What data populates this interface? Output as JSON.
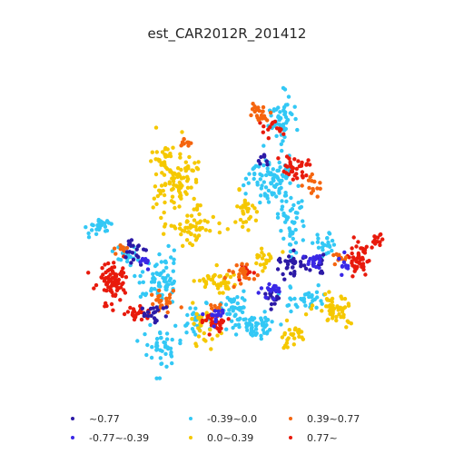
{
  "title": "est_CAR2012R_201412",
  "chart_data": {
    "type": "scatter",
    "title": "est_CAR2012R_201412",
    "grid": false,
    "axes_visible": false,
    "legend_placement": "bottom",
    "categories": [
      {
        "label": "~0.77",
        "color": "#2c1aa6"
      },
      {
        "label": "-0.77~-0.39",
        "color": "#3a28e6"
      },
      {
        "label": "-0.39~0.0",
        "color": "#33c8f5"
      },
      {
        "label": "0.0~0.39",
        "color": "#f5c800"
      },
      {
        "label": "0.39~0.77",
        "color": "#f5650f"
      },
      {
        "label": "0.77~",
        "color": "#e81a0c"
      }
    ]
  }
}
